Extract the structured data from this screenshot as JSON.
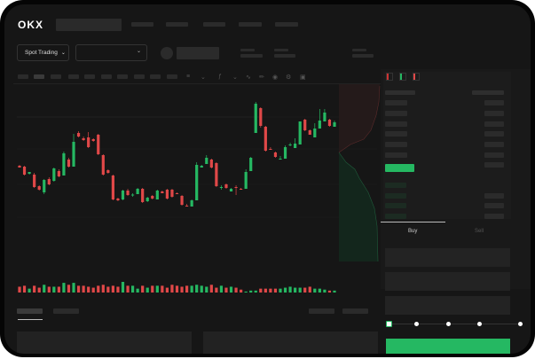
{
  "header": {
    "logo": "OKX",
    "nav_items": 5
  },
  "toolbar": {
    "market_selector": "Spot Trading",
    "market_selector_icon": "chevron-down-icon",
    "pair_selector_icon": "chevron-down-icon"
  },
  "order_book": {
    "view_icons": [
      "orderbook-both-icon",
      "orderbook-buy-icon",
      "orderbook-sell-icon"
    ]
  },
  "order_form": {
    "tabs": [
      {
        "label": "Buy",
        "active": true
      },
      {
        "label": "Sell",
        "active": false
      }
    ],
    "slider_percent": 0,
    "submit_color": "#25b862"
  },
  "colors": {
    "up": "#25b862",
    "down": "#e04848",
    "background": "#161616"
  },
  "chart_data": {
    "type": "candlestick",
    "candles": [
      [
        68,
        69,
        66,
        66
      ],
      [
        67,
        68,
        57,
        58
      ],
      [
        59,
        61,
        58,
        61
      ],
      [
        58,
        60,
        43,
        44
      ],
      [
        45,
        46,
        40,
        41
      ],
      [
        38,
        53,
        36,
        52
      ],
      [
        53,
        55,
        46,
        47
      ],
      [
        51,
        66,
        50,
        65
      ],
      [
        62,
        64,
        55,
        56
      ],
      [
        57,
        84,
        57,
        82
      ],
      [
        75,
        77,
        66,
        67
      ],
      [
        67,
        104,
        67,
        95
      ],
      [
        105,
        107,
        100,
        101
      ],
      [
        99,
        101,
        96,
        97
      ],
      [
        100,
        106,
        88,
        89
      ],
      [
        98,
        99,
        95,
        96
      ],
      [
        103,
        104,
        80,
        81
      ],
      [
        80,
        81,
        57,
        58
      ],
      [
        63,
        64,
        59,
        60
      ],
      [
        57,
        58,
        29,
        30
      ],
      [
        31,
        32,
        28,
        29
      ],
      [
        30,
        41,
        29,
        40
      ],
      [
        40,
        42,
        34,
        35
      ],
      [
        35,
        37,
        33,
        35.5
      ],
      [
        36,
        43,
        36,
        42
      ],
      [
        42,
        43,
        26,
        27
      ],
      [
        28,
        33,
        27,
        32
      ],
      [
        34,
        35,
        30,
        31
      ],
      [
        30,
        41,
        30,
        40
      ],
      [
        39,
        40,
        37,
        37
      ],
      [
        41,
        42,
        30,
        31
      ],
      [
        41,
        42,
        32,
        33
      ],
      [
        37,
        38,
        36,
        36
      ],
      [
        34,
        35,
        23,
        24
      ],
      [
        23,
        25,
        22,
        22
      ],
      [
        22,
        30,
        22,
        29
      ],
      [
        29,
        72,
        29,
        69
      ],
      [
        66,
        69,
        66,
        68
      ],
      [
        70,
        80,
        70,
        77
      ],
      [
        75,
        76,
        65,
        66
      ],
      [
        71,
        72,
        44,
        45
      ],
      [
        43,
        46,
        41,
        44
      ],
      [
        47,
        48,
        42,
        43
      ],
      [
        39,
        43,
        39,
        42
      ],
      [
        44,
        46,
        35,
        43
      ],
      [
        42,
        43,
        41,
        41
      ],
      [
        42,
        64,
        42,
        61
      ],
      [
        62,
        78,
        62,
        77
      ],
      [
        105,
        140,
        105,
        138
      ],
      [
        133,
        134,
        111,
        113
      ],
      [
        112,
        113,
        84,
        85
      ],
      [
        87,
        89,
        86,
        86
      ],
      [
        83,
        84,
        77,
        78
      ],
      [
        76,
        79,
        76,
        76
      ],
      [
        76,
        91,
        76,
        89
      ],
      [
        91,
        94,
        90,
        92
      ],
      [
        88,
        99,
        88,
        93
      ],
      [
        92,
        118,
        92,
        118
      ],
      [
        120,
        121,
        107,
        108
      ],
      [
        108,
        109,
        103,
        103
      ],
      [
        100,
        116,
        100,
        110
      ],
      [
        110,
        132,
        110,
        119
      ],
      [
        118,
        132,
        118,
        128
      ],
      [
        120,
        121,
        112,
        113
      ],
      [
        112,
        119,
        112,
        117
      ]
    ],
    "volumes": [
      6,
      7,
      4,
      7,
      5,
      8,
      6,
      6,
      6,
      10,
      8,
      10,
      7,
      7,
      6,
      5,
      7,
      8,
      6,
      7,
      6,
      11,
      7,
      7,
      4,
      7,
      5,
      7,
      7,
      7,
      5,
      8,
      7,
      6,
      7,
      7,
      8,
      7,
      6,
      8,
      5,
      7,
      5,
      6,
      5,
      3,
      1,
      2,
      2,
      4,
      4,
      4,
      4,
      4,
      5,
      6,
      5,
      5,
      5,
      6,
      4,
      4,
      3,
      2,
      2
    ]
  }
}
